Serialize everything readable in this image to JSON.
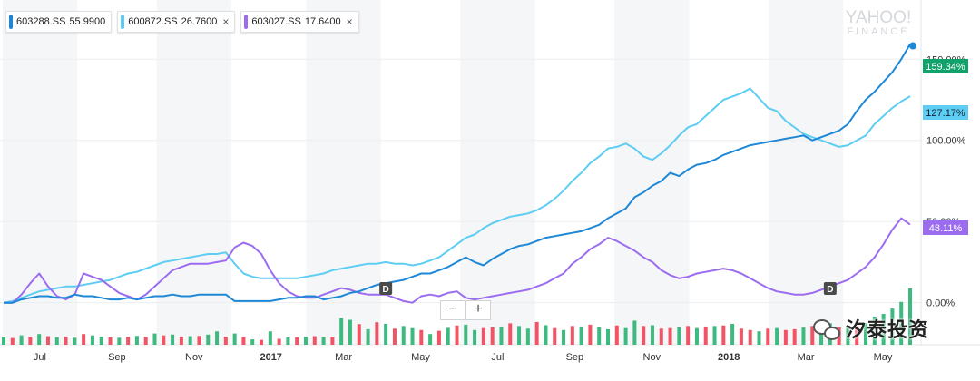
{
  "legend": {
    "items": [
      {
        "symbol": "603288.SS",
        "value": "55.9900",
        "color": "#1e88d6",
        "closable": false
      },
      {
        "symbol": "600872.SS",
        "value": "26.7600",
        "color": "#5ecdf4",
        "closable": true
      },
      {
        "symbol": "603027.SS",
        "value": "17.6400",
        "color": "#9b6cf0",
        "closable": true
      }
    ],
    "close_label": "×"
  },
  "watermark": {
    "line1": "YAHOO!",
    "line2": "FINANCE"
  },
  "zoom": {
    "minus": "−",
    "plus": "+"
  },
  "brand": {
    "text": "汐泰投资"
  },
  "colors": {
    "up_volume": "#3cba7f",
    "down_volume": "#f05465",
    "band": "#f5f6f7",
    "grid": "#ecedef"
  },
  "chart_data": {
    "type": "line",
    "y_unit": "percent change",
    "y_ticks": [
      "0.00%",
      "50.00%",
      "100.00%",
      "150.00%"
    ],
    "y_tick_values": [
      0,
      50,
      100,
      150
    ],
    "ylim": [
      -8,
      182
    ],
    "x_labels": [
      "Jul",
      "Sep",
      "Nov",
      "2017",
      "Mar",
      "May",
      "Jul",
      "Sep",
      "Nov",
      "2018",
      "Mar",
      "May"
    ],
    "x_label_positions": [
      4,
      12.5,
      21,
      29.5,
      37.5,
      46,
      54.5,
      63,
      71.5,
      80,
      88.5,
      97
    ],
    "x_count": 103,
    "grid": true,
    "alternating_bands": true,
    "series": [
      {
        "name": "603288.SS",
        "color": "#1e88d6",
        "last_label": "159.34%",
        "values": [
          0,
          0,
          2,
          3,
          4,
          4,
          3,
          3,
          5,
          4,
          4,
          3,
          2,
          2,
          3,
          2,
          3,
          4,
          4,
          5,
          4,
          4,
          5,
          5,
          5,
          5,
          1,
          1,
          1,
          1,
          1,
          2,
          3,
          3,
          4,
          4,
          2,
          3,
          4,
          6,
          7,
          9,
          11,
          12,
          13,
          14,
          16,
          18,
          18,
          20,
          22,
          25,
          28,
          25,
          23,
          27,
          30,
          33,
          35,
          36,
          38,
          40,
          41,
          42,
          43,
          44,
          46,
          48,
          52,
          55,
          58,
          65,
          68,
          72,
          75,
          80,
          78,
          82,
          85,
          86,
          88,
          91,
          93,
          95,
          97,
          98,
          99,
          100,
          101,
          102,
          103,
          100,
          102,
          104,
          106,
          110,
          118,
          125,
          130,
          136,
          142,
          150,
          159.34
        ]
      },
      {
        "name": "600872.SS",
        "color": "#5ecdf4",
        "last_label": "127.17%",
        "values": [
          0,
          1,
          3,
          5,
          7,
          8,
          9,
          10,
          10,
          11,
          12,
          13,
          14,
          16,
          18,
          19,
          21,
          23,
          25,
          26,
          27,
          28,
          29,
          30,
          30,
          31,
          24,
          18,
          16,
          15,
          15,
          15,
          15,
          15,
          16,
          17,
          18,
          20,
          21,
          22,
          23,
          24,
          24,
          25,
          24,
          24,
          23,
          24,
          26,
          28,
          32,
          36,
          40,
          42,
          46,
          49,
          51,
          53,
          54,
          55,
          57,
          60,
          64,
          69,
          75,
          80,
          86,
          90,
          95,
          96,
          98,
          95,
          90,
          88,
          92,
          97,
          103,
          108,
          110,
          115,
          120,
          125,
          127,
          129,
          132,
          126,
          120,
          118,
          112,
          108,
          104,
          102,
          100,
          98,
          96,
          97,
          100,
          103,
          110,
          115,
          120,
          124,
          127.17
        ]
      },
      {
        "name": "603027.SS",
        "color": "#9b6cf0",
        "last_label": "48.11%",
        "values": [
          0,
          0,
          5,
          12,
          18,
          10,
          4,
          2,
          5,
          18,
          16,
          14,
          10,
          6,
          4,
          2,
          5,
          10,
          15,
          20,
          22,
          24,
          24,
          24,
          25,
          26,
          34,
          37,
          35,
          30,
          20,
          12,
          7,
          4,
          3,
          3,
          5,
          7,
          9,
          8,
          6,
          5,
          5,
          5,
          3,
          1,
          0,
          4,
          5,
          4,
          6,
          7,
          3,
          2,
          3,
          4,
          5,
          6,
          7,
          8,
          10,
          12,
          15,
          18,
          24,
          28,
          33,
          36,
          40,
          38,
          35,
          32,
          28,
          25,
          20,
          17,
          15,
          16,
          18,
          19,
          20,
          21,
          20,
          18,
          15,
          12,
          9,
          7,
          6,
          5,
          5,
          6,
          8,
          10,
          12,
          14,
          18,
          22,
          28,
          36,
          45,
          52,
          48.11
        ]
      }
    ],
    "volume": {
      "unit": "relative",
      "values": [
        0.3,
        0.25,
        0.35,
        0.3,
        0.4,
        0.32,
        0.28,
        0.3,
        0.26,
        0.4,
        0.35,
        0.3,
        0.28,
        0.26,
        0.3,
        0.33,
        0.3,
        0.42,
        0.35,
        0.38,
        0.3,
        0.32,
        0.33,
        0.38,
        0.5,
        0.3,
        0.42,
        0.3,
        0.2,
        0.18,
        0.5,
        0.22,
        0.27,
        0.28,
        0.3,
        0.32,
        0.29,
        0.3,
        1.0,
        0.93,
        0.77,
        0.58,
        0.84,
        0.78,
        0.6,
        0.7,
        0.62,
        0.55,
        0.4,
        0.52,
        0.63,
        0.72,
        0.75,
        0.55,
        0.62,
        0.65,
        0.68,
        0.8,
        0.7,
        0.6,
        0.85,
        0.73,
        0.62,
        0.55,
        0.7,
        0.68,
        0.75,
        0.65,
        0.58,
        0.72,
        0.62,
        0.9,
        0.7,
        0.73,
        0.6,
        0.62,
        0.65,
        0.7,
        0.62,
        0.68,
        0.7,
        0.72,
        0.78,
        0.6,
        0.55,
        0.5,
        0.6,
        0.62,
        0.55,
        0.58,
        0.64,
        0.7,
        0.75,
        0.8,
        0.66,
        0.7,
        0.72,
        0.8,
        1.05,
        1.15,
        1.35,
        1.6,
        2.1
      ],
      "up": [
        true,
        false,
        true,
        false,
        true,
        false,
        true,
        false,
        true,
        false,
        true,
        true,
        false,
        true,
        false,
        true,
        false,
        true,
        false,
        true,
        false,
        true,
        false,
        true,
        true,
        false,
        true,
        false,
        true,
        false,
        true,
        false,
        true,
        false,
        true,
        false,
        true,
        false,
        true,
        true,
        false,
        true,
        false,
        true,
        false,
        true,
        true,
        false,
        true,
        false,
        true,
        false,
        true,
        true,
        false,
        false,
        true,
        false,
        true,
        true,
        false,
        true,
        false,
        true,
        false,
        true,
        false,
        true,
        true,
        false,
        true,
        true,
        false,
        true,
        false,
        false,
        true,
        false,
        true,
        false,
        true,
        false,
        true,
        false,
        false,
        true,
        false,
        true,
        false,
        false,
        true,
        false,
        true,
        true,
        false,
        true,
        false,
        true,
        true,
        true,
        true,
        true,
        true
      ]
    },
    "markers": [
      {
        "label": "D",
        "index": 43
      },
      {
        "label": "D",
        "index": 93
      }
    ]
  }
}
